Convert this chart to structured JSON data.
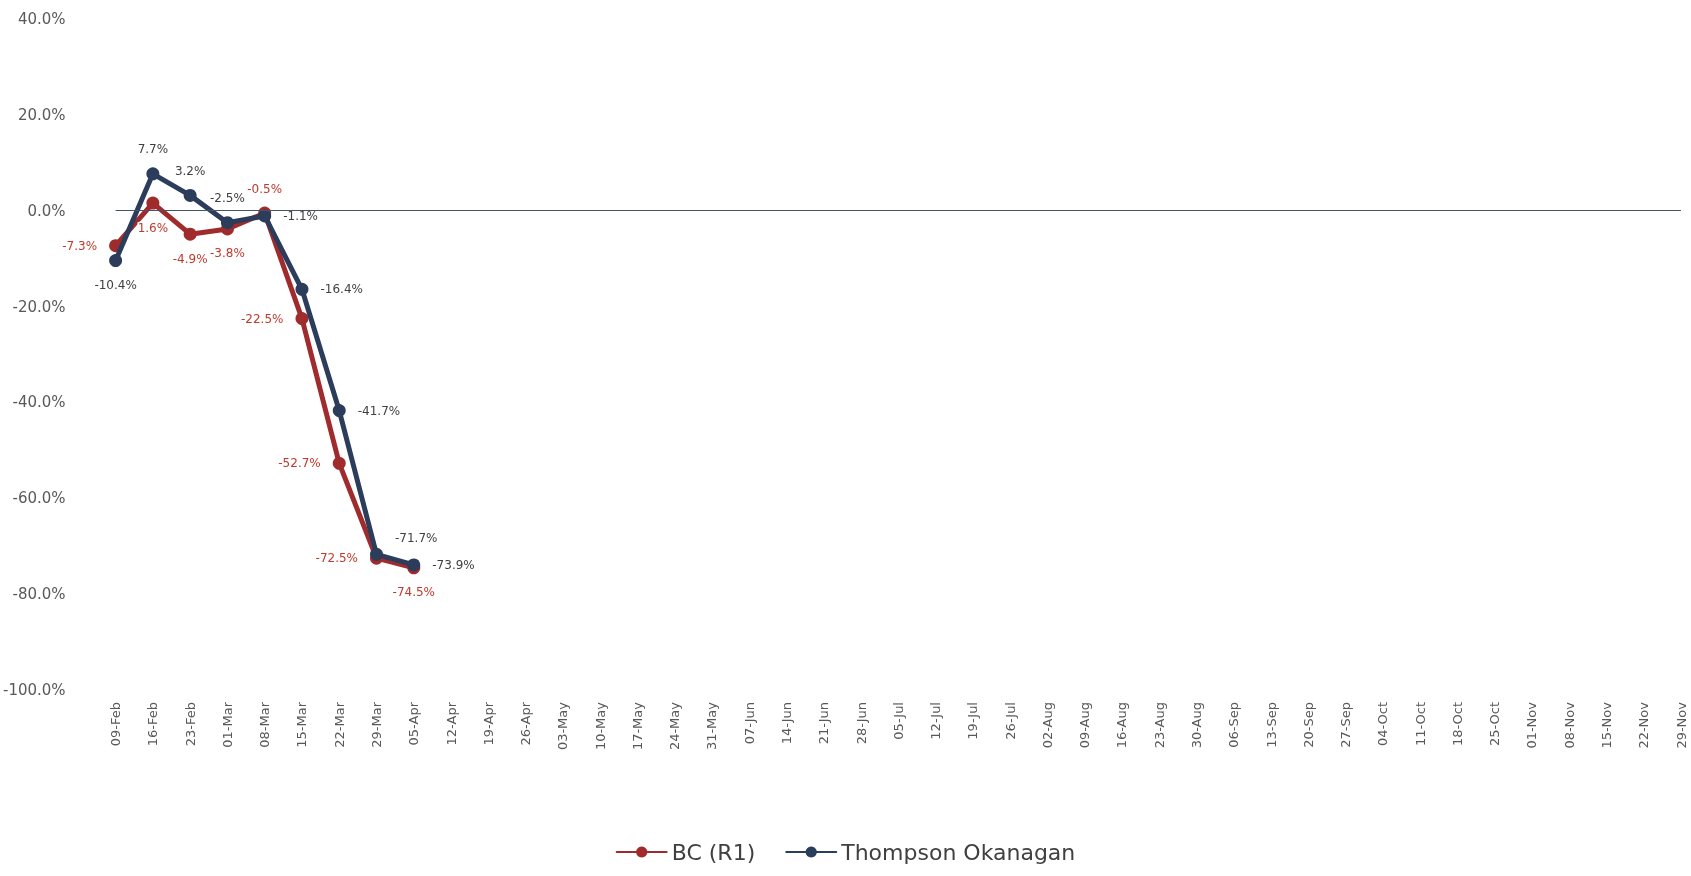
{
  "chart_data": {
    "type": "line",
    "categories": [
      "09-Feb",
      "16-Feb",
      "23-Feb",
      "01-Mar",
      "08-Mar",
      "15-Mar",
      "22-Mar",
      "29-Mar",
      "05-Apr",
      "12-Apr",
      "19-Apr",
      "26-Apr",
      "03-May",
      "10-May",
      "17-May",
      "24-May",
      "31-May",
      "07-Jun",
      "14-Jun",
      "21-Jun",
      "28-Jun",
      "05-Jul",
      "12-Jul",
      "19-Jul",
      "26-Jul",
      "02-Aug",
      "09-Aug",
      "16-Aug",
      "23-Aug",
      "30-Aug",
      "06-Sep",
      "13-Sep",
      "20-Sep",
      "27-Sep",
      "04-Oct",
      "11-Oct",
      "18-Oct",
      "25-Oct",
      "01-Nov",
      "08-Nov",
      "15-Nov",
      "22-Nov",
      "29-Nov"
    ],
    "series": [
      {
        "name": "BC (R1)",
        "color": "#a02b2d",
        "values": [
          -7.3,
          1.6,
          -4.9,
          -3.8,
          -0.5,
          -22.5,
          -52.7,
          -72.5,
          -74.5,
          null,
          null,
          null,
          null,
          null,
          null,
          null,
          null,
          null,
          null,
          null,
          null,
          null,
          null,
          null,
          null,
          null,
          null,
          null,
          null,
          null,
          null,
          null,
          null,
          null,
          null,
          null,
          null,
          null,
          null,
          null,
          null,
          null,
          null
        ],
        "value_labels": [
          "-7.3%",
          "1.6%",
          "-4.9%",
          "-3.8%",
          "-0.5%",
          "-22.5%",
          "-52.7%",
          "-72.5%",
          "-74.5%",
          null,
          null,
          null,
          null,
          null,
          null,
          null,
          null,
          null,
          null,
          null,
          null,
          null,
          null,
          null,
          null,
          null,
          null,
          null,
          null,
          null,
          null,
          null,
          null,
          null,
          null,
          null,
          null,
          null,
          null,
          null,
          null,
          null,
          null
        ]
      },
      {
        "name": "Thompson Okanagan",
        "color": "#2b3d5b",
        "values": [
          -10.4,
          7.7,
          3.2,
          -2.5,
          -1.1,
          -16.4,
          -41.7,
          -71.7,
          -73.9,
          null,
          null,
          null,
          null,
          null,
          null,
          null,
          null,
          null,
          null,
          null,
          null,
          null,
          null,
          null,
          null,
          null,
          null,
          null,
          null,
          null,
          null,
          null,
          null,
          null,
          null,
          null,
          null,
          null,
          null,
          null,
          null,
          null,
          null
        ],
        "value_labels": [
          "-10.4%",
          "7.7%",
          "3.2%",
          "-2.5%",
          "-1.1%",
          "-16.4%",
          "-41.7%",
          "-71.7%",
          "-73.9%",
          null,
          null,
          null,
          null,
          null,
          null,
          null,
          null,
          null,
          null,
          null,
          null,
          null,
          null,
          null,
          null,
          null,
          null,
          null,
          null,
          null,
          null,
          null,
          null,
          null,
          null,
          null,
          null,
          null,
          null,
          null,
          null,
          null,
          null
        ]
      }
    ],
    "ylim": [
      -100,
      40
    ],
    "yticks": [
      {
        "value": -100,
        "label": "-100.0%"
      },
      {
        "value": -80,
        "label": "-80.0%"
      },
      {
        "value": -60,
        "label": "-60.0%"
      },
      {
        "value": -40,
        "label": "-40.0%"
      },
      {
        "value": -20,
        "label": "-20.0%"
      },
      {
        "value": 0,
        "label": "0.0%"
      },
      {
        "value": 20,
        "label": "20.0%"
      },
      {
        "value": 40,
        "label": "40.0%"
      }
    ],
    "ref_lines": [
      {
        "axis": "y",
        "value": 0,
        "color": "#44546a"
      }
    ],
    "grid": false,
    "legend": "bottom",
    "marker": "circle",
    "line_style": "solid"
  }
}
